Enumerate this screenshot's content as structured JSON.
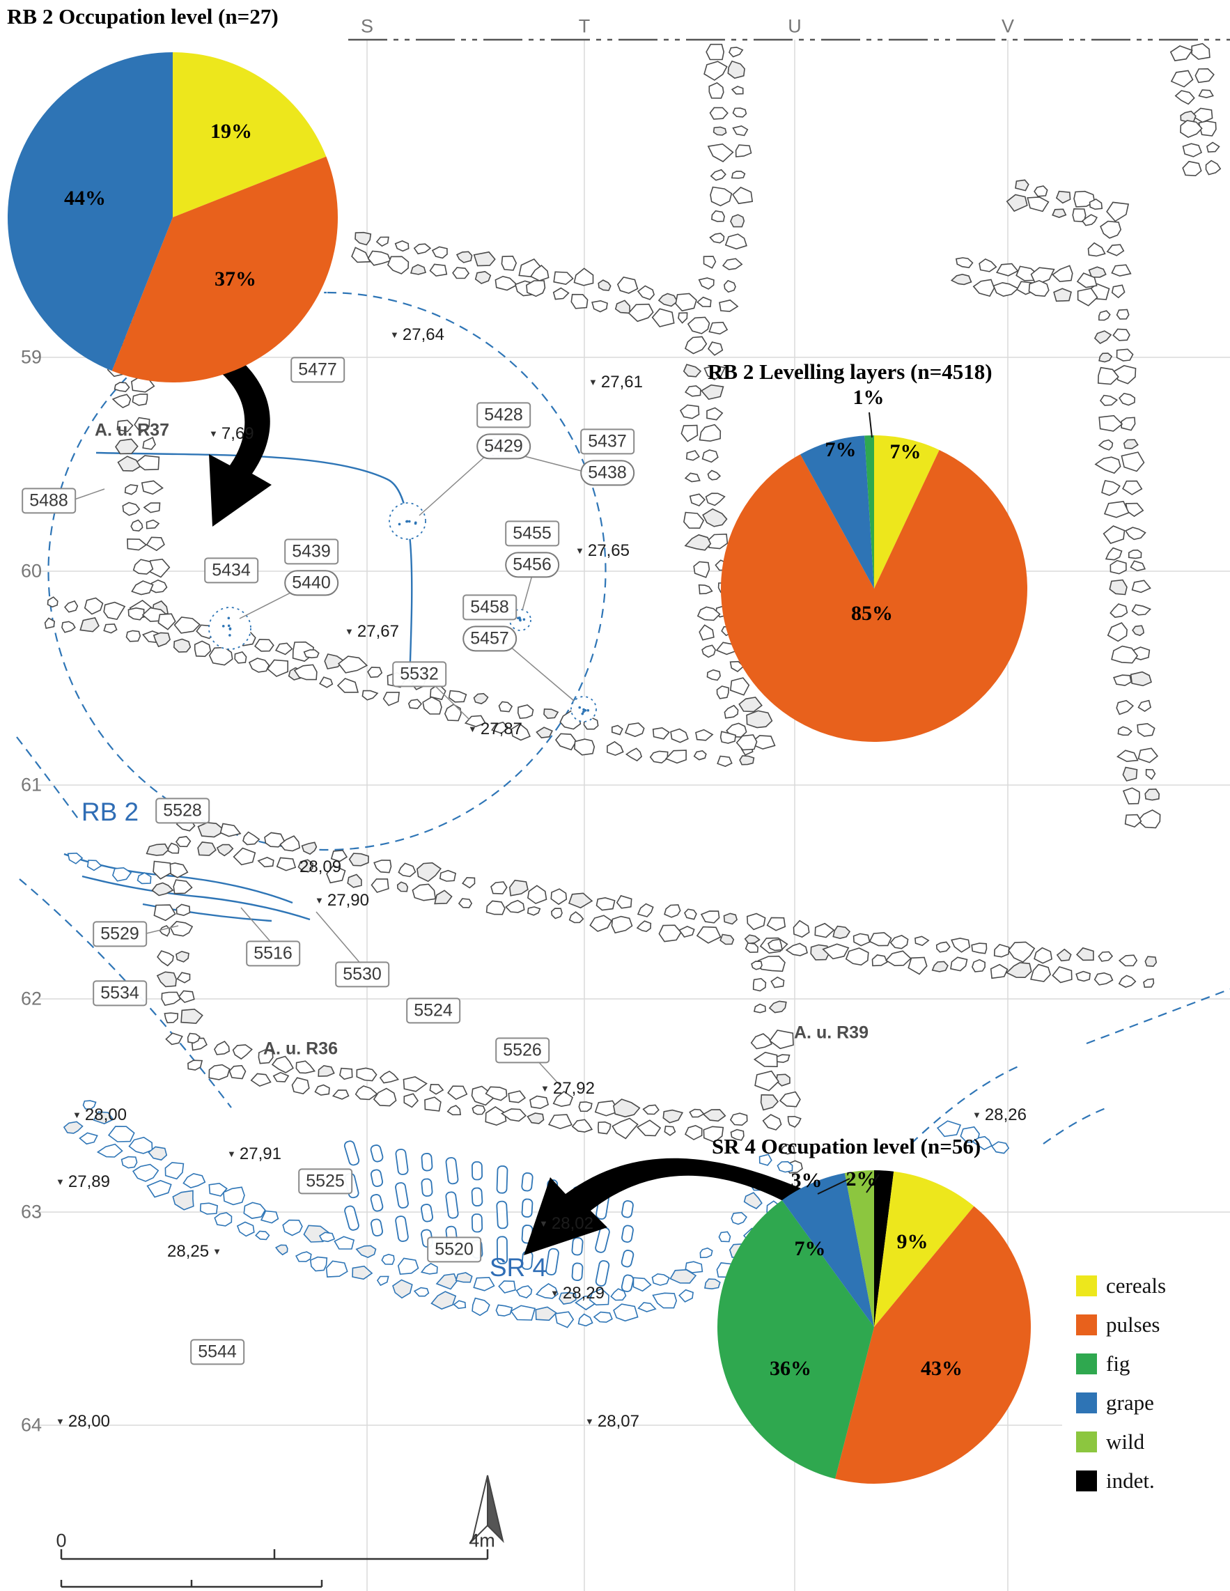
{
  "chart_data": [
    {
      "type": "pie",
      "title": "RB 2 Occupation level (n=27)",
      "n": 27,
      "direction": "clockwise",
      "start_angle_deg": 0,
      "slices": [
        {
          "label": "cereals",
          "value": 19,
          "text": "19%",
          "color": "#ede71c"
        },
        {
          "label": "pulses",
          "value": 37,
          "text": "37%",
          "color": "#e8611c"
        },
        {
          "label": "grape",
          "value": 44,
          "text": "44%",
          "color": "#2e74b5"
        }
      ]
    },
    {
      "type": "pie",
      "title": "RB 2 Levelling layers (n=4518)",
      "n": 4518,
      "direction": "clockwise",
      "start_angle_deg": 0,
      "slices": [
        {
          "label": "cereals",
          "value": 7,
          "text": "7%",
          "color": "#ede71c"
        },
        {
          "label": "pulses",
          "value": 85,
          "text": "85%",
          "color": "#e8611c"
        },
        {
          "label": "grape",
          "value": 7,
          "text": "7%",
          "color": "#2e74b5"
        },
        {
          "label": "fig",
          "value": 1,
          "text": "1%",
          "color": "#2fa84f"
        }
      ]
    },
    {
      "type": "pie",
      "title": "SR 4 Occupation level (n=56)",
      "n": 56,
      "direction": "clockwise",
      "start_angle_deg": 0,
      "slices": [
        {
          "label": "indet.",
          "value": 2,
          "text": "2%",
          "color": "#000000"
        },
        {
          "label": "cereals",
          "value": 9,
          "text": "9%",
          "color": "#ede71c"
        },
        {
          "label": "pulses",
          "value": 43,
          "text": "43%",
          "color": "#e8611c"
        },
        {
          "label": "fig",
          "value": 36,
          "text": "36%",
          "color": "#2fa84f"
        },
        {
          "label": "grape",
          "value": 7,
          "text": "7%",
          "color": "#2e74b5"
        },
        {
          "label": "wild",
          "value": 3,
          "text": "3%",
          "color": "#8cc63f"
        }
      ]
    }
  ],
  "legend": {
    "items": [
      {
        "label": "cereals",
        "color": "#ede71c"
      },
      {
        "label": "pulses",
        "color": "#e8611c"
      },
      {
        "label": "fig",
        "color": "#2fa84f"
      },
      {
        "label": "grape",
        "color": "#2e74b5"
      },
      {
        "label": "wild",
        "color": "#8cc63f"
      },
      {
        "label": "indet.",
        "color": "#000000"
      }
    ]
  },
  "plan": {
    "grid_columns": [
      "S",
      "T",
      "U",
      "V"
    ],
    "grid_rows": [
      "59",
      "60",
      "61",
      "62",
      "63",
      "64"
    ],
    "feature_labels": [
      "5477",
      "5428",
      "5429",
      "5437",
      "5438",
      "5455",
      "5456",
      "5458",
      "5457",
      "5439",
      "5440",
      "5488",
      "5434",
      "5532",
      "5528",
      "5529",
      "5516",
      "5530",
      "5534",
      "5524",
      "5526",
      "5525",
      "5520",
      "5544"
    ],
    "elevations": [
      "27,64",
      "27,61",
      "7,69",
      "27,65",
      "27,67",
      "27,87",
      "28,09",
      "27,90",
      "27,92",
      "28,00",
      "27,91",
      "27,89",
      "28,25",
      "28,02",
      "28,29",
      "28,26",
      "28,07",
      "28,00"
    ],
    "area_labels": [
      "A. u. R37",
      "A. u. R36",
      "A. u. R39"
    ],
    "room_labels": [
      "RB 2",
      "SR 4"
    ],
    "scale_bar": {
      "start": "0",
      "end": "4m"
    }
  }
}
